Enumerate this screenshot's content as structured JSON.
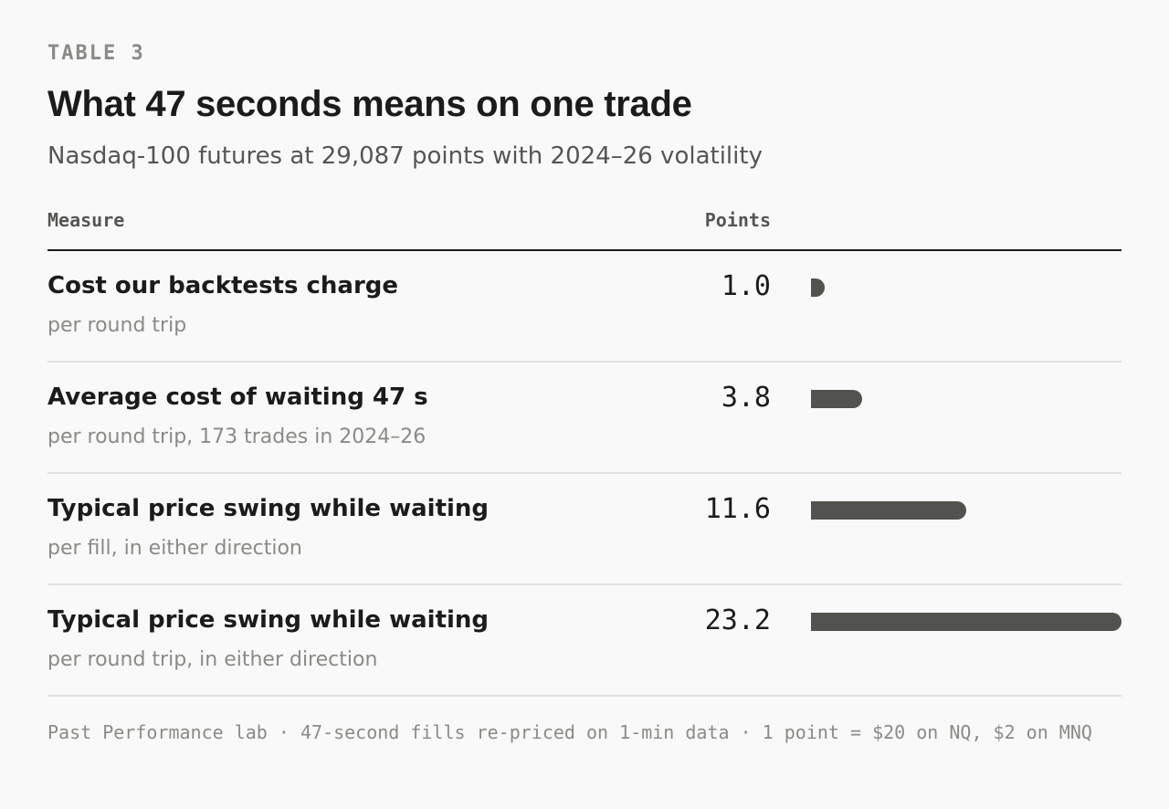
{
  "eyebrow": "TABLE 3",
  "title": "What 47 seconds means on one trade",
  "subtitle": "Nasdaq-100 futures at 29,087 points with 2024–26 volatility",
  "columns": {
    "measure": "Measure",
    "points": "Points"
  },
  "chart_data": {
    "type": "bar",
    "title": "What 47 seconds means on one trade",
    "subtitle": "Nasdaq-100 futures at 29,087 points with 2024–26 volatility",
    "categories": [
      "Cost our backtests charge",
      "Average cost of waiting 47 s",
      "Typical price swing while waiting",
      "Typical price swing while waiting"
    ],
    "category_notes": [
      "per round trip",
      "per round trip, 173 trades in 2024–26",
      "per fill, in either direction",
      "per round trip, in either direction"
    ],
    "values": [
      1.0,
      3.8,
      11.6,
      23.2
    ],
    "value_labels": [
      "1.0",
      "3.8",
      "11.6",
      "23.2"
    ],
    "xmax": 23.2,
    "orientation": "horizontal",
    "bar_color": "#52524e"
  },
  "footer": "Past Performance lab · 47-second fills re-priced on 1-min data · 1 point = $20 on NQ, $2 on MNQ"
}
